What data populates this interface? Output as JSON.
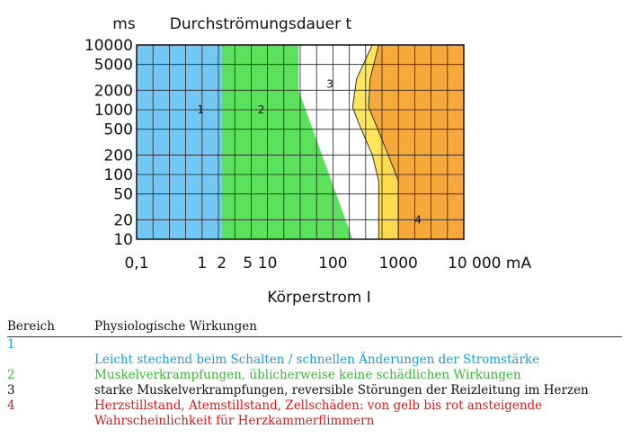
{
  "chart_data": {
    "type": "area",
    "title": "Durchströmungsdauer t",
    "y_unit": "ms",
    "xlabel": "Körperstrom I",
    "x_scale": "log",
    "y_scale": "log",
    "xlim": [
      0.1,
      10000
    ],
    "ylim": [
      10,
      10000
    ],
    "grid": true,
    "x_ticks": [
      {
        "value": 0.1,
        "label": "0,1"
      },
      {
        "value": 1,
        "label": "1"
      },
      {
        "value": 2,
        "label": "2"
      },
      {
        "value": 5,
        "label": "5"
      },
      {
        "value": 10,
        "label": "10"
      },
      {
        "value": 100,
        "label": "100"
      },
      {
        "value": 1000,
        "label": "1000"
      },
      {
        "value": 10000,
        "label": "10 000 mA"
      }
    ],
    "y_ticks": [
      {
        "value": 10000,
        "label": "10000"
      },
      {
        "value": 5000,
        "label": "5000"
      },
      {
        "value": 2000,
        "label": "2000"
      },
      {
        "value": 1000,
        "label": "1000"
      },
      {
        "value": 500,
        "label": "500"
      },
      {
        "value": 200,
        "label": "200"
      },
      {
        "value": 100,
        "label": "100"
      },
      {
        "value": 50,
        "label": "50"
      },
      {
        "value": 20,
        "label": "20"
      },
      {
        "value": 10,
        "label": "10"
      }
    ],
    "zones": [
      {
        "label": "1",
        "color": "#5bbdf2",
        "label_at": [
          0.95,
          1000
        ],
        "boundary": [
          [
            0.1,
            10
          ],
          [
            0.1,
            10000
          ],
          [
            2,
            10000
          ],
          [
            2,
            10
          ]
        ]
      },
      {
        "label": "2",
        "color": "#3fdc3f",
        "label_at": [
          8,
          1000
        ],
        "boundary": [
          [
            2,
            10
          ],
          [
            2,
            10000
          ],
          [
            30,
            10000
          ],
          [
            30,
            2000
          ],
          [
            200,
            10
          ]
        ]
      },
      {
        "label": "3",
        "color": "#ffffff",
        "label_at": [
          90,
          2500
        ],
        "boundary": [
          [
            30,
            10000
          ],
          [
            30,
            2000
          ],
          [
            200,
            10
          ],
          [
            500,
            10
          ],
          [
            500,
            10000
          ]
        ]
      },
      {
        "label": "4",
        "color": "#f57070",
        "label_at": [
          2000,
          20
        ],
        "boundary": [
          [
            500,
            10000
          ],
          [
            500,
            10
          ],
          [
            10000,
            10
          ],
          [
            10000,
            10000
          ]
        ]
      }
    ],
    "curves": [
      {
        "color": "#ffe34a",
        "points": [
          [
            500,
            10
          ],
          [
            500,
            80
          ],
          [
            400,
            200
          ],
          [
            250,
            600
          ],
          [
            200,
            1100
          ],
          [
            230,
            3000
          ],
          [
            400,
            10000
          ]
        ]
      },
      {
        "color": "#f5a23a",
        "points": [
          [
            1000,
            10
          ],
          [
            1000,
            80
          ],
          [
            700,
            200
          ],
          [
            450,
            600
          ],
          [
            350,
            1100
          ],
          [
            370,
            3000
          ],
          [
            500,
            10000
          ]
        ]
      },
      {
        "color": "#f57070",
        "points": [
          [
            10000,
            10
          ],
          [
            10000,
            10000
          ]
        ]
      }
    ]
  },
  "legend": {
    "header": {
      "col1": "Bereich",
      "col2": "Physiologische Wirkungen"
    },
    "rows": [
      {
        "id": "1",
        "text": "Leicht stechend beim Schalten / schnellen Änderungen der Stromstärke"
      },
      {
        "id": "2",
        "text": "Muskelverkrampfungen, üblicherweise keine schädlichen Wirkungen"
      },
      {
        "id": "3",
        "text": "starke Muskelverkrampfungen, reversible Störungen der Reizleitung im Herzen"
      },
      {
        "id": "4",
        "text": "Herzstillstand, Atemstillstand, Zellschäden: von gelb bis rot ansteigende Wahrscheinlichkeit für Herzkammerflimmern"
      }
    ]
  }
}
